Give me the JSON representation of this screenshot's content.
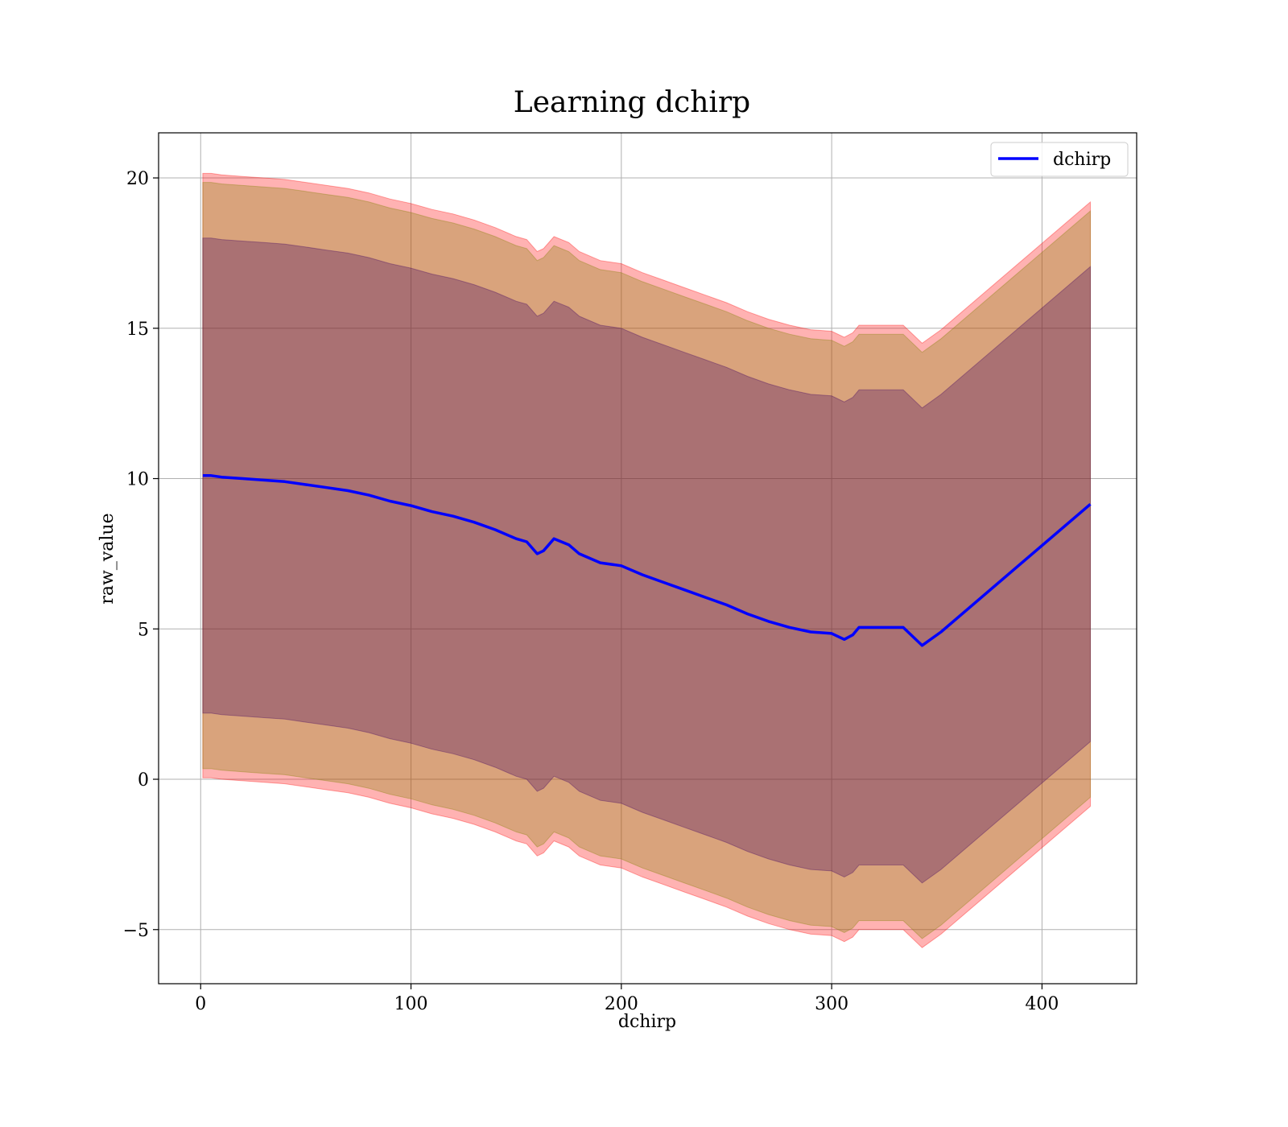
{
  "chart_data": {
    "type": "line",
    "title": "Learning dchirp",
    "xlabel": "dchirp",
    "ylabel": "raw_value",
    "xlim": [
      -20,
      445
    ],
    "ylim": [
      -6.8,
      21.5
    ],
    "xticks": [
      0,
      100,
      200,
      300,
      400
    ],
    "yticks": [
      -5,
      0,
      5,
      10,
      15,
      20
    ],
    "ytick_labels": [
      "−5",
      "0",
      "5",
      "10",
      "15",
      "20"
    ],
    "grid": true,
    "legend": {
      "placement": "top-right",
      "entries": [
        "dchirp"
      ]
    },
    "colors": {
      "line": "#0000ff",
      "band_outer": "#ff0000",
      "band_mid": "#808000",
      "band_inner": "#400060",
      "grid": "#b0b0b0"
    },
    "series": [
      {
        "name": "dchirp",
        "x": [
          1,
          5,
          10,
          20,
          30,
          40,
          50,
          60,
          70,
          80,
          90,
          100,
          110,
          120,
          130,
          140,
          150,
          155,
          160,
          163,
          168,
          175,
          180,
          190,
          200,
          210,
          220,
          230,
          240,
          250,
          260,
          270,
          280,
          290,
          300,
          306,
          310,
          313,
          320,
          334,
          343,
          352,
          423
        ],
        "y": [
          10.1,
          10.1,
          10.05,
          10.0,
          9.95,
          9.9,
          9.8,
          9.7,
          9.6,
          9.45,
          9.25,
          9.1,
          8.9,
          8.75,
          8.55,
          8.3,
          8.0,
          7.9,
          7.5,
          7.6,
          8.0,
          7.8,
          7.5,
          7.2,
          7.1,
          6.8,
          6.55,
          6.3,
          6.05,
          5.8,
          5.5,
          5.25,
          5.05,
          4.9,
          4.85,
          4.65,
          4.8,
          5.05,
          5.05,
          5.05,
          4.45,
          4.9,
          9.15
        ]
      }
    ],
    "bands": [
      {
        "name": "outer",
        "offset_upper": 10.05,
        "offset_lower": 10.05
      },
      {
        "name": "middle",
        "offset_upper": 9.75,
        "offset_lower": 9.75
      },
      {
        "name": "inner",
        "offset_upper": 7.9,
        "offset_lower": 7.9
      }
    ]
  }
}
